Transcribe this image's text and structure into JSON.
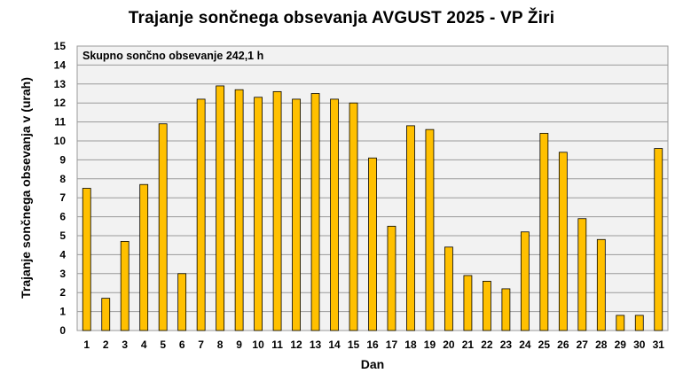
{
  "chart_data": {
    "type": "bar",
    "title": "Trajanje  sončnega obsevanja  AVGUST 2025 - VP Žiri",
    "xlabel": "Dan",
    "ylabel": "Trajanje  sončnega obsevanja  v (urah)",
    "annotation": "Skupno sončno obsevanje 242,1 h",
    "ylim": [
      0,
      15
    ],
    "ytick_step": 1,
    "grid": true,
    "legend": "none",
    "bar_color": "#FFC000",
    "bar_stroke": "#000000",
    "plot_bg": "#F2F2F2",
    "categories": [
      "1",
      "2",
      "3",
      "4",
      "5",
      "6",
      "7",
      "8",
      "9",
      "10",
      "11",
      "12",
      "13",
      "14",
      "15",
      "16",
      "17",
      "18",
      "19",
      "20",
      "21",
      "22",
      "23",
      "24",
      "25",
      "26",
      "27",
      "28",
      "29",
      "30",
      "31"
    ],
    "values": [
      7.5,
      1.7,
      4.7,
      7.7,
      10.9,
      3.0,
      12.2,
      12.9,
      12.7,
      12.3,
      12.6,
      12.2,
      12.5,
      12.2,
      12.0,
      9.1,
      5.5,
      10.8,
      10.6,
      4.4,
      2.9,
      2.6,
      2.2,
      5.2,
      10.4,
      9.4,
      5.9,
      4.8,
      0.8,
      0.8,
      9.6
    ]
  }
}
